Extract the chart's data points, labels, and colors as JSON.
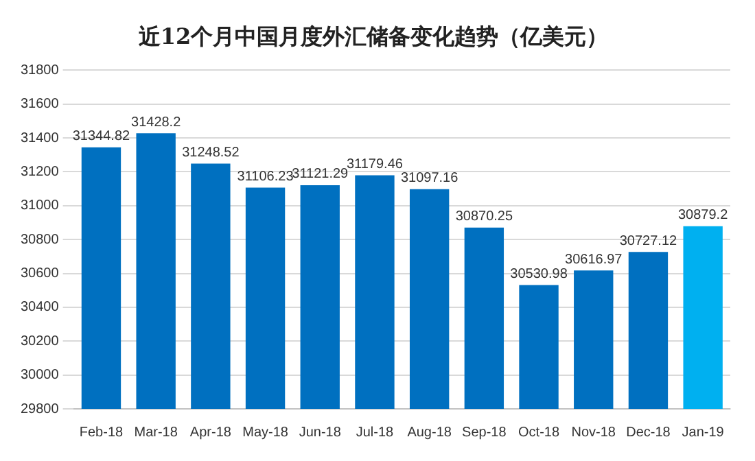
{
  "chart_data": {
    "type": "bar",
    "title": "近12个月中国月度外汇储备变化趋势（亿美元）",
    "categories": [
      "Feb-18",
      "Mar-18",
      "Apr-18",
      "May-18",
      "Jun-18",
      "Jul-18",
      "Aug-18",
      "Sep-18",
      "Oct-18",
      "Nov-18",
      "Dec-18",
      "Jan-19"
    ],
    "values": [
      31344.82,
      31428.2,
      31248.52,
      31106.23,
      31121.29,
      31179.46,
      31097.16,
      30870.25,
      30530.98,
      30616.97,
      30727.12,
      30879.2
    ],
    "colors": [
      "#0070c0",
      "#0070c0",
      "#0070c0",
      "#0070c0",
      "#0070c0",
      "#0070c0",
      "#0070c0",
      "#0070c0",
      "#0070c0",
      "#0070c0",
      "#0070c0",
      "#00b0f0"
    ],
    "ylim": [
      29800,
      31800
    ],
    "yticks": [
      29800,
      30000,
      30200,
      30400,
      30600,
      30800,
      31000,
      31200,
      31400,
      31600,
      31800
    ],
    "grid": "y",
    "data_labels": true,
    "legend": false
  }
}
